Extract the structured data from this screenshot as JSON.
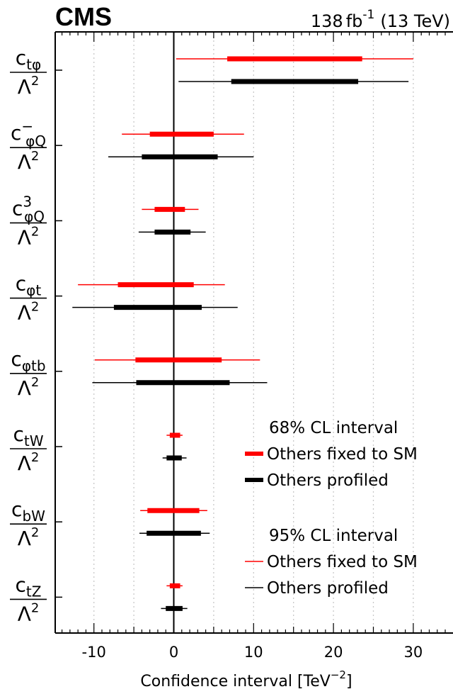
{
  "chart_data": {
    "type": "interval",
    "experiment": "CMS",
    "lumi": {
      "value": "138",
      "unit": "fb",
      "exp": "-1",
      "energy": "(13 TeV)"
    },
    "xlabel": {
      "text": "Confidence interval [TeV",
      "exp": "−2",
      "close": "]"
    },
    "xlim": [
      -15,
      35
    ],
    "xticks": [
      -10,
      0,
      10,
      20,
      30
    ],
    "xtick_labels": [
      "-10",
      "0",
      "10",
      "20",
      "30"
    ],
    "grid": "vertical dotted",
    "colors": {
      "fixed": "#ff0000",
      "profiled": "#000000"
    },
    "parameters": [
      {
        "name": "ctφ",
        "num_base": "c",
        "num_sub": "tφ",
        "num_sup": "",
        "den": "Λ2",
        "fixed": {
          "cl68": [
            6.7,
            23.6
          ],
          "cl95": [
            0.3,
            30.0
          ]
        },
        "profiled": {
          "cl68": [
            7.2,
            23.1
          ],
          "cl95": [
            0.6,
            29.4
          ]
        }
      },
      {
        "name": "c−φQ",
        "num_base": "c",
        "num_sub": "φQ",
        "num_sup": "−",
        "den": "Λ2",
        "fixed": {
          "cl68": [
            -3.0,
            5.0
          ],
          "cl95": [
            -6.5,
            8.8
          ]
        },
        "profiled": {
          "cl68": [
            -4.0,
            5.5
          ],
          "cl95": [
            -8.2,
            10.0
          ]
        }
      },
      {
        "name": "c3φQ",
        "num_base": "c",
        "num_sub": "φQ",
        "num_sup": "3",
        "den": "Λ2",
        "fixed": {
          "cl68": [
            -2.4,
            1.4
          ],
          "cl95": [
            -4.0,
            3.1
          ]
        },
        "profiled": {
          "cl68": [
            -2.4,
            2.1
          ],
          "cl95": [
            -4.4,
            4.0
          ]
        }
      },
      {
        "name": "cφt",
        "num_base": "c",
        "num_sub": "φt",
        "num_sup": "",
        "den": "Λ2",
        "fixed": {
          "cl68": [
            -7.0,
            2.5
          ],
          "cl95": [
            -12.0,
            6.4
          ]
        },
        "profiled": {
          "cl68": [
            -7.5,
            3.5
          ],
          "cl95": [
            -12.7,
            8.0
          ]
        }
      },
      {
        "name": "cφtb",
        "num_base": "c",
        "num_sub": "φtb",
        "num_sup": "",
        "den": "Λ2",
        "fixed": {
          "cl68": [
            -4.8,
            6.0
          ],
          "cl95": [
            -9.9,
            10.8
          ]
        },
        "profiled": {
          "cl68": [
            -4.7,
            7.0
          ],
          "cl95": [
            -10.2,
            11.7
          ]
        }
      },
      {
        "name": "ctW",
        "num_base": "c",
        "num_sub": "tW",
        "num_sup": "",
        "den": "Λ2",
        "fixed": {
          "cl68": [
            -0.5,
            0.8
          ],
          "cl95": [
            -0.9,
            1.1
          ]
        },
        "profiled": {
          "cl68": [
            -0.9,
            1.0
          ],
          "cl95": [
            -1.4,
            1.6
          ]
        }
      },
      {
        "name": "cbW",
        "num_base": "c",
        "num_sub": "bW",
        "num_sup": "",
        "den": "Λ2",
        "fixed": {
          "cl68": [
            -3.3,
            3.2
          ],
          "cl95": [
            -4.2,
            4.2
          ]
        },
        "profiled": {
          "cl68": [
            -3.4,
            3.4
          ],
          "cl95": [
            -4.3,
            4.5
          ]
        }
      },
      {
        "name": "ctZ",
        "num_base": "c",
        "num_sub": "tZ",
        "num_sup": "",
        "den": "Λ2",
        "fixed": {
          "cl68": [
            -0.5,
            0.8
          ],
          "cl95": [
            -0.9,
            1.1
          ]
        },
        "profiled": {
          "cl68": [
            -1.0,
            1.1
          ],
          "cl95": [
            -1.6,
            1.7
          ]
        }
      }
    ],
    "legend": {
      "placement": "bottom-right",
      "groups": [
        {
          "title": "68% CL interval",
          "entries": [
            {
              "label": "Others fixed to SM",
              "style": "thick",
              "color": "#ff0000"
            },
            {
              "label": "Others profiled",
              "style": "thick",
              "color": "#000000"
            }
          ]
        },
        {
          "title": "95% CL interval",
          "entries": [
            {
              "label": "Others fixed to SM",
              "style": "thin",
              "color": "#ff0000"
            },
            {
              "label": "Others profiled",
              "style": "thin",
              "color": "#000000"
            }
          ]
        }
      ]
    }
  }
}
